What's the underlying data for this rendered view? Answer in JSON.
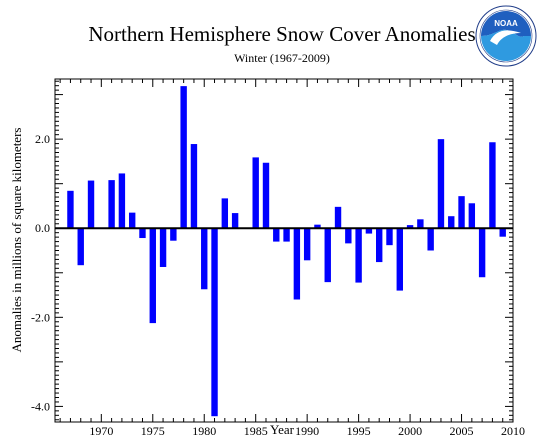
{
  "chart_data": {
    "type": "bar",
    "title": "Northern Hemisphere Snow Cover Anomalies",
    "subtitle": "Winter (1967-2009)",
    "xlabel": "Year",
    "ylabel": "Anomalies in millions of square kilometers",
    "logo_text": "NOAA",
    "bar_color": "#0000ff",
    "xlim": [
      1965.5,
      2010
    ],
    "ylim": [
      -4.35,
      3.35
    ],
    "x_ticks": [
      1970,
      1975,
      1980,
      1985,
      1990,
      1995,
      2000,
      2005,
      2010
    ],
    "y_ticks": [
      {
        "value": 2.0,
        "label": "2.0"
      },
      {
        "value": 0.0,
        "label": "0.0"
      },
      {
        "value": -2.0,
        "label": "-2.0"
      },
      {
        "value": -4.0,
        "label": "-4.0"
      }
    ],
    "x": [
      1967,
      1968,
      1969,
      1970,
      1971,
      1972,
      1973,
      1974,
      1975,
      1976,
      1977,
      1978,
      1979,
      1980,
      1981,
      1982,
      1983,
      1984,
      1985,
      1986,
      1987,
      1988,
      1989,
      1990,
      1991,
      1992,
      1993,
      1994,
      1995,
      1996,
      1997,
      1998,
      1999,
      2000,
      2001,
      2002,
      2003,
      2004,
      2005,
      2006,
      2007,
      2008,
      2009
    ],
    "values": [
      0.84,
      -0.83,
      1.07,
      0.0,
      1.08,
      1.23,
      0.35,
      -0.22,
      -2.13,
      -0.87,
      -0.28,
      3.19,
      1.89,
      -1.37,
      -4.22,
      0.67,
      0.34,
      0.0,
      1.59,
      1.47,
      -0.3,
      -0.3,
      -1.6,
      -0.72,
      0.08,
      -1.21,
      0.48,
      -0.34,
      -1.22,
      -0.12,
      -0.76,
      -0.38,
      -1.4,
      0.07,
      0.2,
      -0.5,
      2.0,
      0.27,
      0.72,
      0.56,
      -1.1,
      1.93,
      -0.19
    ]
  }
}
